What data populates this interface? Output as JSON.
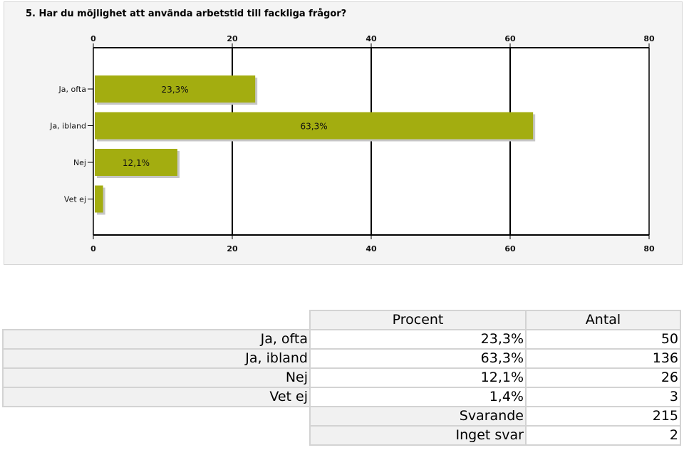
{
  "chart_data": {
    "type": "bar",
    "orientation": "horizontal",
    "title": "5. Har du möjlighet att använda arbetstid till fackliga frågor?",
    "categories": [
      "Ja, ofta",
      "Ja, ibland",
      "Nej",
      "Vet ej"
    ],
    "values": [
      23.3,
      63.3,
      12.1,
      1.4
    ],
    "data_labels": [
      "23,3%",
      "63,3%",
      "12,1%",
      ""
    ],
    "xlim": [
      0,
      80
    ],
    "xticks": [
      0,
      20,
      40,
      60,
      80
    ],
    "grid": true,
    "bar_color": "#a3ad10",
    "legend": "none"
  },
  "table": {
    "headers": [
      "Procent",
      "Antal"
    ],
    "rows": [
      {
        "label": "Ja, ofta",
        "percent": "23,3%",
        "count": "50"
      },
      {
        "label": "Ja, ibland",
        "percent": "63,3%",
        "count": "136"
      },
      {
        "label": "Nej",
        "percent": "12,1%",
        "count": "26"
      },
      {
        "label": "Vet ej",
        "percent": "1,4%",
        "count": "3"
      }
    ],
    "summary": [
      {
        "label": "Svarande",
        "count": "215"
      },
      {
        "label": "Inget svar",
        "count": "2"
      }
    ]
  }
}
